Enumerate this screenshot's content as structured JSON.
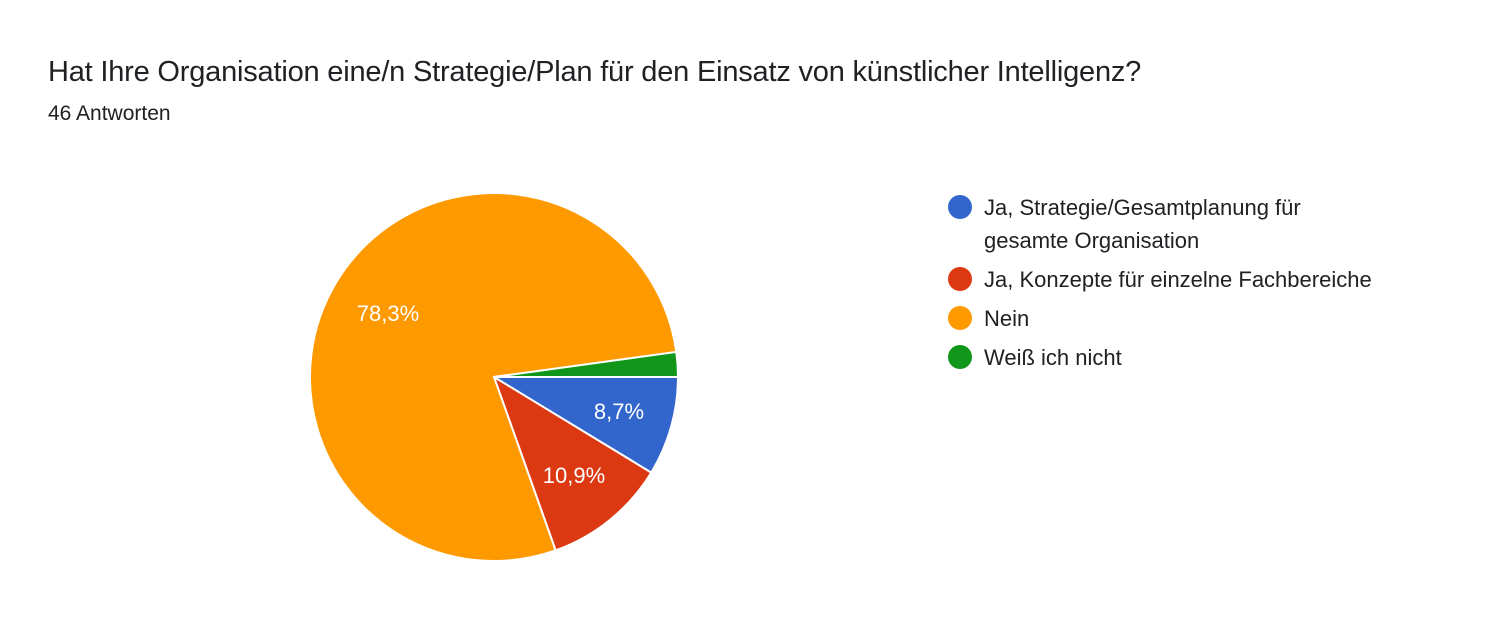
{
  "header": {
    "title": "Hat Ihre Organisation eine/n Strategie/Plan für den Einsatz von künstlicher Intelligenz?",
    "subtitle": "46 Antworten"
  },
  "legend": [
    {
      "label": "Ja, Strategie/Gesamtplanung für gesamte Organisation",
      "color": "#3366cc"
    },
    {
      "label": "Ja, Konzepte für einzelne Fachbereiche",
      "color": "#dc3912"
    },
    {
      "label": "Nein",
      "color": "#ff9900"
    },
    {
      "label": "Weiß ich nicht",
      "color": "#109618"
    }
  ],
  "slice_labels": {
    "blue": "8,7%",
    "red": "10,9%",
    "orange": "78,3%"
  },
  "chart_data": {
    "type": "pie",
    "title": "Hat Ihre Organisation eine/n Strategie/Plan für den Einsatz von künstlicher Intelligenz?",
    "subtitle": "46 Antworten",
    "categories": [
      "Ja, Strategie/Gesamtplanung für gesamte Organisation",
      "Ja, Konzepte für einzelne Fachbereiche",
      "Nein",
      "Weiß ich nicht"
    ],
    "values": [
      8.7,
      10.9,
      78.3,
      2.2
    ],
    "counts": [
      4,
      5,
      36,
      1
    ],
    "colors": [
      "#3366cc",
      "#dc3912",
      "#ff9900",
      "#109618"
    ],
    "data_labels": [
      "8,7%",
      "10,9%",
      "78,3%",
      ""
    ],
    "legend_position": "right",
    "start_angle": "3 o'clock, clockwise"
  }
}
